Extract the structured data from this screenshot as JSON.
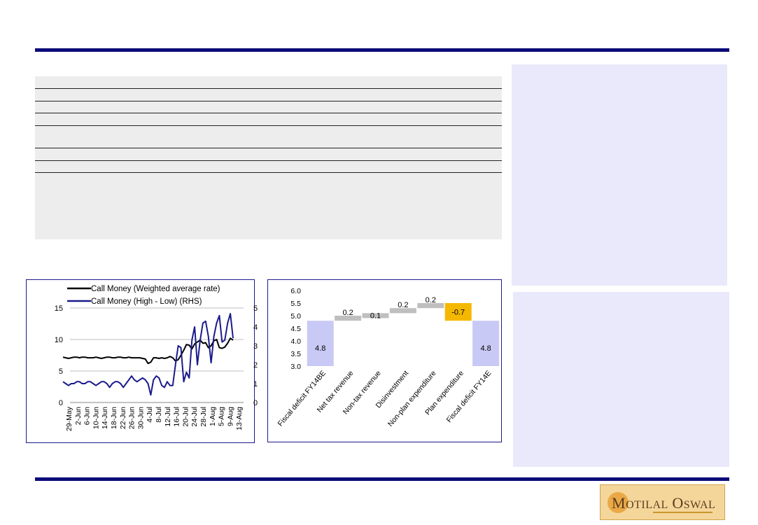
{
  "colors": {
    "rule": "#0a0a78",
    "panel_grey": "#ededed",
    "panel_lavender": "#e9e9fb",
    "chart_border": "#1a1a8c",
    "series_black": "#000000",
    "series_navy": "#1a1a8c",
    "bar_lavender": "#c9c9f5",
    "bar_grey": "#bfbfbf",
    "bar_orange": "#f5b800"
  },
  "logo": {
    "text": "MOTILAL OSWAL",
    "word1_cap": "M",
    "word1_rest": "OTILAL",
    "word2_cap": "O",
    "word2_rest": "SWAL"
  },
  "chart_data": [
    {
      "type": "line",
      "legend_position": "top",
      "yleft_ticks": [
        "0",
        "5",
        "10",
        "15"
      ],
      "yright_ticks": [
        "0",
        "1",
        "2",
        "3",
        "4",
        "5"
      ],
      "ylim_left": [
        0,
        15
      ],
      "ylim_right": [
        0,
        5
      ],
      "x_tick_labels": [
        "29-May",
        "2-Jun",
        "6-Jun",
        "10-Jun",
        "14-Jun",
        "18-Jun",
        "22-Jun",
        "26-Jun",
        "30-Jun",
        "4-Jul",
        "8-Jul",
        "12-Jul",
        "16-Jul",
        "20-Jul",
        "24-Jul",
        "28-Jul",
        "1-Aug",
        "5-Aug",
        "9-Aug",
        "13-Aug"
      ],
      "grid": true,
      "series": [
        {
          "name": "Call Money (Weighted average  rate)",
          "axis": "left",
          "values": [
            7.2,
            7.1,
            7.0,
            7.1,
            7.2,
            7.2,
            7.1,
            7.2,
            7.2,
            7.1,
            7.1,
            7.1,
            7.2,
            7.1,
            7.0,
            7.1,
            7.2,
            7.2,
            7.1,
            7.1,
            7.2,
            7.2,
            7.1,
            7.1,
            7.2,
            7.1,
            7.1,
            7.1,
            7.1,
            7.0,
            6.9,
            6.2,
            6.4,
            7.1,
            7.1,
            7.0,
            7.1,
            7.0,
            7.1,
            7.3,
            7.1,
            6.6,
            6.8,
            7.5,
            8.3,
            9.2,
            9.1,
            8.5,
            9.3,
            9.6,
            9.9,
            9.4,
            9.5,
            8.7,
            9.0,
            9.8,
            10.0,
            8.7,
            8.6,
            8.8,
            9.4,
            10.2,
            9.9
          ]
        },
        {
          "name": "Call Money (High - Low) (RHS)",
          "axis": "right",
          "values": [
            1.1,
            1.0,
            0.9,
            1.0,
            1.0,
            1.1,
            1.1,
            1.0,
            1.0,
            1.1,
            1.1,
            1.0,
            0.9,
            1.0,
            1.1,
            1.1,
            1.0,
            0.8,
            1.0,
            1.1,
            1.1,
            1.0,
            0.8,
            1.0,
            1.2,
            1.4,
            1.2,
            1.1,
            1.2,
            1.3,
            1.2,
            1.0,
            0.4,
            1.2,
            1.4,
            1.3,
            0.9,
            0.8,
            1.1,
            0.9,
            0.9,
            2.0,
            3.0,
            2.9,
            1.1,
            1.6,
            1.3,
            3.3,
            4.0,
            2.0,
            3.3,
            4.2,
            4.3,
            3.5,
            2.1,
            3.5,
            4.2,
            4.6,
            3.2,
            3.3,
            4.2,
            4.7,
            3.4
          ]
        }
      ]
    },
    {
      "type": "bar",
      "subtype": "waterfall",
      "categories": [
        "Fiscal deficit FY14BE",
        "Net tax revenue",
        "Non-tax revenue",
        "Disinvestment",
        "Non-plan expenditure",
        "Plan expenditure",
        "Fiscal deficit FY14E"
      ],
      "values": [
        4.8,
        0.2,
        0.1,
        0.2,
        0.2,
        -0.7,
        4.8
      ],
      "data_labels": [
        "4.8",
        "0.2",
        "0.1",
        "0.2",
        "0.2",
        "-0.7",
        "4.8"
      ],
      "ylim": [
        3.0,
        6.0
      ],
      "y_ticks": [
        "3.0",
        "3.5",
        "4.0",
        "4.5",
        "5.0",
        "5.5",
        "6.0"
      ],
      "grid": false
    }
  ]
}
